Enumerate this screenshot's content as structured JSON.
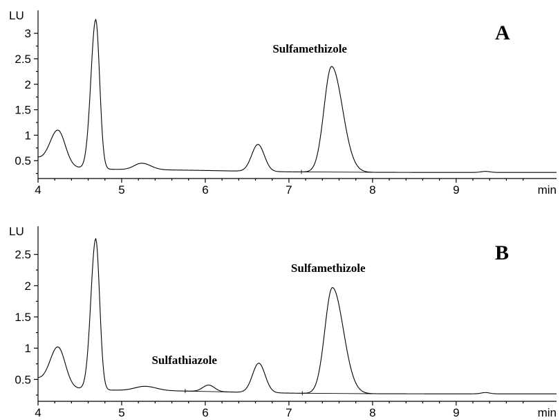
{
  "chart_data": [
    {
      "type": "line",
      "panel_label": "A",
      "ylabel": "LU",
      "xlabel": "min",
      "xlim": [
        4,
        10.2
      ],
      "ylim": [
        0.15,
        3.45
      ],
      "x_ticks": [
        4,
        5,
        6,
        7,
        8,
        9
      ],
      "y_ticks": [
        0.5,
        1,
        1.5,
        2,
        2.5,
        3
      ],
      "y_tick_labels": [
        "0.5",
        "1",
        "1.5",
        "2",
        "2.5",
        "3"
      ],
      "baseline_level": 0.27,
      "peaks": [
        {
          "rt": 4.24,
          "height": 1.1
        },
        {
          "rt": 4.69,
          "height": 3.27
        },
        {
          "rt": 5.24,
          "height": 0.45
        },
        {
          "rt": 6.63,
          "height": 0.82
        },
        {
          "rt": 7.51,
          "height": 2.35,
          "label": "Sulfamethizole"
        }
      ],
      "annotations": [
        {
          "text": "Sulfamethizole",
          "x": 7.25,
          "y": 2.62
        }
      ]
    },
    {
      "type": "line",
      "panel_label": "B",
      "ylabel": "LU",
      "xlabel": "min",
      "xlim": [
        4,
        10.2
      ],
      "ylim": [
        0.15,
        2.95
      ],
      "x_ticks": [
        4,
        5,
        6,
        7,
        8,
        9
      ],
      "y_ticks": [
        0.5,
        1,
        1.5,
        2,
        2.5
      ],
      "y_tick_labels": [
        "0.5",
        "1",
        "1.5",
        "2",
        "2.5"
      ],
      "baseline_level": 0.27,
      "peaks": [
        {
          "rt": 4.24,
          "height": 1.02
        },
        {
          "rt": 4.69,
          "height": 2.75
        },
        {
          "rt": 5.28,
          "height": 0.39
        },
        {
          "rt": 6.04,
          "height": 0.41,
          "label": "Sulfathiazole"
        },
        {
          "rt": 6.64,
          "height": 0.76
        },
        {
          "rt": 7.52,
          "height": 1.97,
          "label": "Sulfamethizole"
        }
      ],
      "annotations": [
        {
          "text": "Sulfathiazole",
          "x": 5.75,
          "y": 0.75
        },
        {
          "text": "Sulfamethizole",
          "x": 7.47,
          "y": 2.22
        }
      ]
    }
  ]
}
